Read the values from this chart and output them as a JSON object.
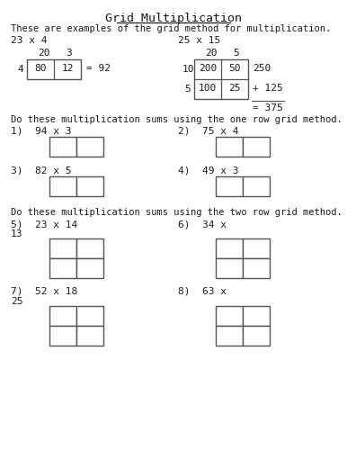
{
  "title": "Grid Multiplication",
  "subtitle": "These are examples of the grid method for multiplication.",
  "bg_color": "#ffffff",
  "text_color": "#1a1a1a",
  "example1_label": "23 x 4",
  "example1_col_headers": [
    "20",
    "3"
  ],
  "example1_row_headers": [
    "4"
  ],
  "example1_cells": [
    [
      "80",
      "12"
    ]
  ],
  "example1_result": "= 92",
  "example2_label": "25 x 15",
  "example2_col_headers": [
    "20",
    "5"
  ],
  "example2_row_headers": [
    "10",
    "5"
  ],
  "example2_cells": [
    [
      "200",
      "50"
    ],
    [
      "100",
      "25"
    ]
  ],
  "example2_row_sums": [
    "250",
    "+ 125"
  ],
  "example2_result": "= 375",
  "one_row_instruction": "Do these multiplication sums using the one row grid method.",
  "one_row_problems_left": [
    "1)  94 x 3",
    "3)  82 x 5"
  ],
  "one_row_problems_right": [
    "2)  75 x 4",
    "4)  49 x 3"
  ],
  "two_row_instruction": "Do these multiplication sums using the two row grid method.",
  "two_row_problems_left": [
    "5)  23 x 14",
    "7)  52 x 18"
  ],
  "two_row_problems_left_sub": [
    "13",
    "25"
  ],
  "two_row_problems_right": [
    "6)  34 x",
    "8)  63 x"
  ]
}
